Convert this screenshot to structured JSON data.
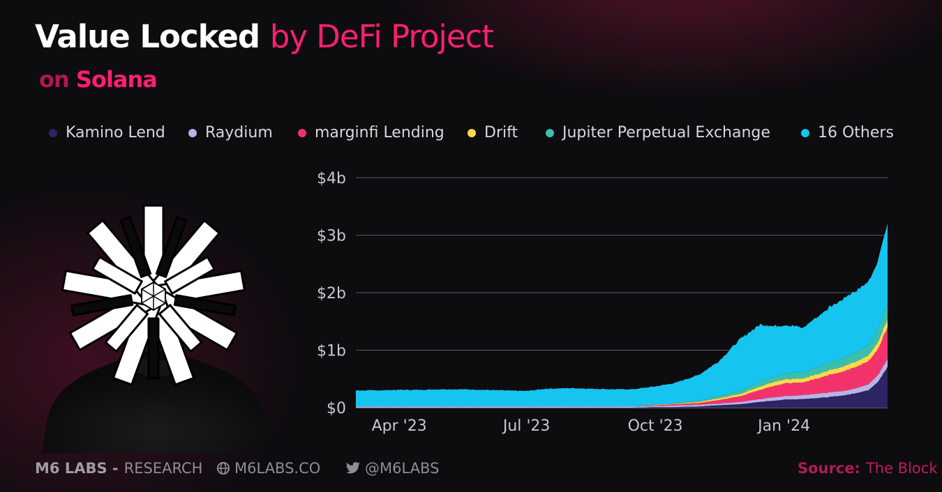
{
  "title": {
    "part1": "Value Locked",
    "part2": "by DeFi Project"
  },
  "subtitle": {
    "part1": "on",
    "part2": "Solana"
  },
  "footer": {
    "brand": "M6 LABS -",
    "division": "RESEARCH",
    "website": "M6LABS.CO",
    "website_icon": "globe-icon",
    "twitter": "@M6LABS",
    "twitter_icon": "twitter-bird-icon",
    "source_label": "Source:",
    "source_value": "The Block"
  },
  "colors": {
    "title_accent": "#ff1f70",
    "background": "#0d0c0f",
    "grid": "#5a5a60"
  },
  "chart_data": {
    "type": "area",
    "stacked": true,
    "x_start": "2023-03-01",
    "x_end": "2024-03-15",
    "y_range": [
      0,
      4
    ],
    "y_unit": "billions USD",
    "y_ticks": [
      {
        "value": 0,
        "label": "$0"
      },
      {
        "value": 1,
        "label": "$1b"
      },
      {
        "value": 2,
        "label": "$2b"
      },
      {
        "value": 3,
        "label": "$3b"
      },
      {
        "value": 4,
        "label": "$4b"
      }
    ],
    "x_ticks": [
      {
        "date": "2023-04-01",
        "label": "Apr '23"
      },
      {
        "date": "2023-07-01",
        "label": "Jul '23"
      },
      {
        "date": "2023-10-01",
        "label": "Oct '23"
      },
      {
        "date": "2024-01-01",
        "label": "Jan '24"
      }
    ],
    "grid": true,
    "legend_position": "top",
    "dates": [
      "2023-03-01",
      "2023-03-15",
      "2023-04-01",
      "2023-04-15",
      "2023-05-01",
      "2023-05-15",
      "2023-06-01",
      "2023-06-15",
      "2023-07-01",
      "2023-07-15",
      "2023-08-01",
      "2023-08-15",
      "2023-09-01",
      "2023-09-15",
      "2023-10-01",
      "2023-10-15",
      "2023-11-01",
      "2023-11-15",
      "2023-12-01",
      "2023-12-15",
      "2023-12-25",
      "2024-01-01",
      "2024-01-15",
      "2024-02-01",
      "2024-02-15",
      "2024-03-01",
      "2024-03-08",
      "2024-03-15"
    ],
    "series": [
      {
        "name": "Kamino Lend",
        "color": "#2b2563",
        "values": [
          0,
          0,
          0,
          0,
          0,
          0,
          0,
          0,
          0,
          0,
          0,
          0,
          0,
          0,
          0.01,
          0.01,
          0.02,
          0.04,
          0.06,
          0.1,
          0.12,
          0.14,
          0.15,
          0.18,
          0.22,
          0.3,
          0.45,
          0.7
        ]
      },
      {
        "name": "Raydium",
        "color": "#b9b2e8",
        "values": [
          0.02,
          0.02,
          0.02,
          0.02,
          0.02,
          0.02,
          0.02,
          0.02,
          0.02,
          0.02,
          0.02,
          0.02,
          0.02,
          0.02,
          0.02,
          0.03,
          0.03,
          0.03,
          0.04,
          0.05,
          0.06,
          0.06,
          0.07,
          0.08,
          0.08,
          0.1,
          0.12,
          0.14
        ]
      },
      {
        "name": "marginfi Lending",
        "color": "#f2336b",
        "values": [
          0,
          0,
          0,
          0,
          0,
          0,
          0,
          0,
          0,
          0,
          0,
          0,
          0,
          0,
          0.01,
          0.02,
          0.03,
          0.06,
          0.1,
          0.16,
          0.2,
          0.22,
          0.22,
          0.3,
          0.35,
          0.4,
          0.45,
          0.55
        ]
      },
      {
        "name": "Drift",
        "color": "#ffd84d",
        "values": [
          0,
          0,
          0,
          0,
          0,
          0,
          0,
          0,
          0,
          0,
          0,
          0,
          0,
          0,
          0.01,
          0.01,
          0.02,
          0.03,
          0.04,
          0.06,
          0.07,
          0.07,
          0.07,
          0.08,
          0.09,
          0.1,
          0.12,
          0.14
        ]
      },
      {
        "name": "Jupiter Perpetual Exchange",
        "color": "#3bbfad",
        "values": [
          0,
          0,
          0,
          0,
          0,
          0,
          0,
          0,
          0,
          0,
          0,
          0,
          0,
          0,
          0,
          0.01,
          0.02,
          0.04,
          0.06,
          0.08,
          0.09,
          0.1,
          0.11,
          0.13,
          0.15,
          0.18,
          0.22,
          0.27
        ]
      },
      {
        "name": "16 Others",
        "color": "#16c4f0",
        "values": [
          0.28,
          0.28,
          0.29,
          0.29,
          0.3,
          0.3,
          0.29,
          0.28,
          0.27,
          0.31,
          0.32,
          0.31,
          0.3,
          0.3,
          0.32,
          0.35,
          0.45,
          0.6,
          0.9,
          1.0,
          0.88,
          0.85,
          0.78,
          0.95,
          1.05,
          1.1,
          1.2,
          1.4
        ]
      }
    ]
  }
}
